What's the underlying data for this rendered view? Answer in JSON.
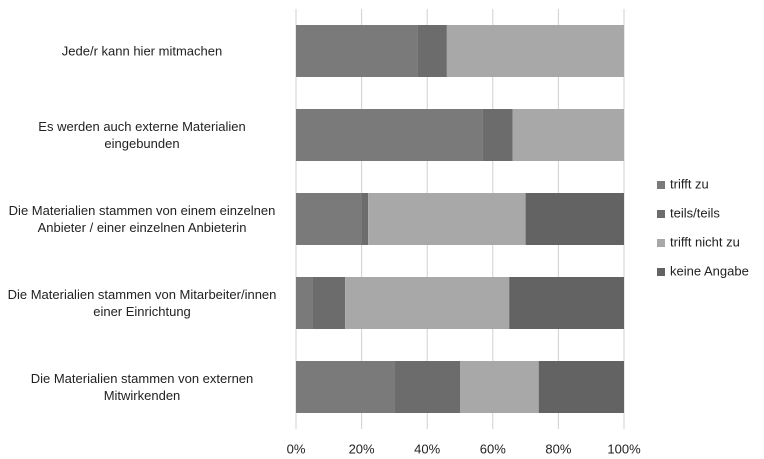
{
  "chart_data": {
    "type": "stacked-barh",
    "categories": [
      "Jede/r kann hier mitmachen",
      "Es werden auch externe Materialien eingebunden",
      "Die Materialien stammen von einem einzelnen Anbieter / einer einzelnen Anbieterin",
      "Die Materialien stammen von Mitarbeiter/innen einer Einrichtung",
      "Die Materialien stammen von externen Mitwirkenden"
    ],
    "series": [
      {
        "name": "trifft zu",
        "color": "#7a7a7a",
        "values": [
          37,
          57,
          20,
          5,
          30
        ]
      },
      {
        "name": "teils/teils",
        "color": "#6c6c6c",
        "values": [
          9,
          9,
          2,
          10,
          20
        ]
      },
      {
        "name": "trifft nicht zu",
        "color": "#a8a8a8",
        "values": [
          54,
          34,
          48,
          50,
          24
        ]
      },
      {
        "name": "keine Angabe",
        "color": "#636363",
        "values": [
          0,
          0,
          30,
          35,
          26
        ]
      }
    ],
    "xlim": [
      0,
      100
    ],
    "xticks": [
      {
        "value": 0,
        "label": "0%"
      },
      {
        "value": 20,
        "label": "20%"
      },
      {
        "value": 40,
        "label": "40%"
      },
      {
        "value": 60,
        "label": "60%"
      },
      {
        "value": 80,
        "label": "80%"
      },
      {
        "value": 100,
        "label": "100%"
      }
    ],
    "grid": true,
    "legend": "right"
  }
}
